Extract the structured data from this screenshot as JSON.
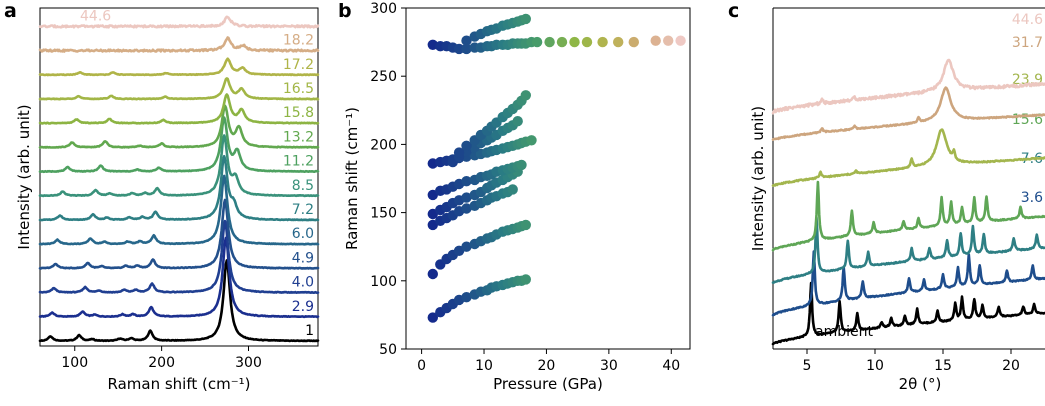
{
  "colors": {
    "black": "#000000",
    "navy": "#1b2f8f",
    "blue": "#23508c",
    "teal": "#2e7f84",
    "sea": "#3f9a76",
    "green": "#62a84f",
    "lime": "#8db443",
    "olive": "#b0b448",
    "tan": "#c8a86a",
    "sand": "#d5ad86",
    "pink": "#ecc7c0"
  },
  "panels": {
    "a": {
      "letter": "a"
    },
    "b": {
      "letter": "b"
    },
    "c": {
      "letter": "c"
    }
  },
  "chart_data": [
    {
      "panel": "a",
      "type": "line",
      "xlabel": "Raman shift (cm⁻¹)",
      "ylabel": "Intensity (arb. unit)",
      "xlim": [
        60,
        380
      ],
      "xticks": [
        100,
        200,
        300
      ],
      "yticks": [],
      "series": [
        {
          "name": "1",
          "color": "#000000",
          "peaks": [
            [
              72,
              0.15
            ],
            [
              105,
              0.18
            ],
            [
              120,
              0.05
            ],
            [
              152,
              0.07
            ],
            [
              165,
              0.08
            ],
            [
              187,
              0.32
            ],
            [
              275,
              2.6
            ]
          ]
        },
        {
          "name": "2.9",
          "color": "#1b2f8f",
          "peaks": [
            [
              74,
              0.13
            ],
            [
              109,
              0.16
            ],
            [
              123,
              0.06
            ],
            [
              155,
              0.07
            ],
            [
              167,
              0.07
            ],
            [
              188,
              0.3
            ],
            [
              274,
              2.55
            ]
          ]
        },
        {
          "name": "4.0",
          "color": "#203f91",
          "peaks": [
            [
              76,
              0.14
            ],
            [
              112,
              0.17
            ],
            [
              128,
              0.06
            ],
            [
              157,
              0.08
            ],
            [
              170,
              0.08
            ],
            [
              189,
              0.28
            ],
            [
              273,
              2.3
            ]
          ]
        },
        {
          "name": "4.9",
          "color": "#23508c",
          "peaks": [
            [
              78,
              0.14
            ],
            [
              115,
              0.17
            ],
            [
              131,
              0.06
            ],
            [
              159,
              0.08
            ],
            [
              172,
              0.08
            ],
            [
              190,
              0.27
            ],
            [
              273,
              2.2
            ]
          ]
        },
        {
          "name": "6.0",
          "color": "#27678b",
          "peaks": [
            [
              80,
              0.14
            ],
            [
              118,
              0.18
            ],
            [
              134,
              0.07
            ],
            [
              161,
              0.08
            ],
            [
              175,
              0.08
            ],
            [
              191,
              0.27
            ],
            [
              272,
              2.2
            ]
          ]
        },
        {
          "name": "7.2",
          "color": "#2e7f84",
          "peaks": [
            [
              83,
              0.14
            ],
            [
              121,
              0.18
            ],
            [
              137,
              0.07
            ],
            [
              163,
              0.08
            ],
            [
              178,
              0.09
            ],
            [
              193,
              0.26
            ],
            [
              272,
              2.0
            ],
            [
              283,
              0.4
            ]
          ]
        },
        {
          "name": "8.5",
          "color": "#3a927b",
          "peaks": [
            [
              86,
              0.13
            ],
            [
              124,
              0.18
            ],
            [
              140,
              0.07
            ],
            [
              166,
              0.08
            ],
            [
              181,
              0.08
            ],
            [
              195,
              0.24
            ],
            [
              272,
              1.9
            ],
            [
              285,
              0.5
            ]
          ]
        },
        {
          "name": "11.2",
          "color": "#4ea160",
          "peaks": [
            [
              92,
              0.14
            ],
            [
              130,
              0.19
            ],
            [
              172,
              0.06
            ],
            [
              197,
              0.12
            ],
            [
              272,
              1.7
            ],
            [
              287,
              0.6
            ]
          ]
        },
        {
          "name": "13.2",
          "color": "#62a84f",
          "peaks": [
            [
              97,
              0.16
            ],
            [
              135,
              0.2
            ],
            [
              175,
              0.05
            ],
            [
              200,
              0.12
            ],
            [
              273,
              1.3
            ],
            [
              289,
              0.6
            ]
          ]
        },
        {
          "name": "15.8",
          "color": "#8db443",
          "peaks": [
            [
              102,
              0.12
            ],
            [
              140,
              0.14
            ],
            [
              202,
              0.1
            ],
            [
              275,
              0.9
            ],
            [
              292,
              0.4
            ]
          ]
        },
        {
          "name": "16.5",
          "color": "#a2b646",
          "peaks": [
            [
              104,
              0.09
            ],
            [
              142,
              0.1
            ],
            [
              204,
              0.07
            ],
            [
              275,
              0.65
            ],
            [
              292,
              0.3
            ]
          ]
        },
        {
          "name": "17.2",
          "color": "#b0b448",
          "peaks": [
            [
              106,
              0.07
            ],
            [
              144,
              0.07
            ],
            [
              205,
              0.05
            ],
            [
              276,
              0.5
            ],
            [
              293,
              0.2
            ]
          ]
        },
        {
          "name": "18.2",
          "color": "#d5ad86",
          "peaks": [
            [
              276,
              0.4
            ],
            [
              294,
              0.15
            ]
          ]
        },
        {
          "name": "44.6",
          "color": "#ecc7c0",
          "peaks": [
            [
              276,
              0.3
            ]
          ]
        }
      ]
    },
    {
      "panel": "b",
      "type": "scatter",
      "xlabel": "Pressure (GPa)",
      "ylabel": "Raman shift (cm⁻¹)",
      "xlim": [
        -2.5,
        43
      ],
      "ylim": [
        50,
        300
      ],
      "xticks": [
        0,
        10,
        20,
        30,
        40
      ],
      "yticks": [
        50,
        100,
        150,
        200,
        250,
        300
      ],
      "series": [
        {
          "x": [
            1.8,
            3,
            4,
            5,
            6,
            7.2,
            8.5,
            9.5,
            10.5,
            11.2,
            12,
            13,
            13.8,
            14.6,
            15.4,
            16,
            16.7
          ],
          "y": [
            73,
            77,
            80,
            83,
            86,
            88,
            90,
            92,
            93,
            95,
            96,
            97,
            98,
            99,
            100,
            100,
            101
          ]
        },
        {
          "x": [
            1.8,
            3,
            4,
            5,
            6,
            7.2,
            8.5,
            9.5,
            10.5,
            11.2,
            12,
            13,
            13.8,
            14.6,
            15.4,
            16,
            16.7
          ],
          "y": [
            105,
            112,
            116,
            119,
            122,
            125,
            127,
            129,
            131,
            132,
            134,
            136,
            137,
            138,
            139,
            140,
            141
          ]
        },
        {
          "x": [
            1.8,
            3,
            4,
            5,
            6,
            7.2,
            8.5,
            9.5,
            10.5,
            11.2,
            12,
            13,
            13.8,
            14.6
          ],
          "y": [
            141,
            144,
            146,
            148,
            151,
            153,
            155,
            157,
            159,
            161,
            162,
            164,
            165,
            167
          ]
        },
        {
          "x": [
            1.8,
            3,
            4,
            5,
            6,
            7.2,
            8.5,
            9.5,
            10.5,
            11.2,
            12,
            13,
            13.8,
            14.6,
            15.4
          ],
          "y": [
            149,
            152,
            154,
            157,
            159,
            161,
            163,
            165,
            168,
            170,
            172,
            174,
            176,
            178,
            180
          ]
        },
        {
          "x": [
            1.8,
            3,
            4,
            5,
            6,
            7.2,
            8.5,
            9.5,
            10.5,
            11.2,
            12,
            13,
            13.8,
            14.6,
            15.4,
            16
          ],
          "y": [
            163,
            166,
            167,
            169,
            171,
            173,
            174,
            176,
            177,
            178,
            180,
            181,
            182,
            183,
            184,
            185
          ]
        },
        {
          "x": [
            1.8,
            3,
            4,
            5,
            6,
            7.2,
            8.5,
            9.5,
            10.5,
            11.2,
            12,
            13,
            13.8,
            14.6,
            15.4,
            16,
            16.7,
            17.6
          ],
          "y": [
            186,
            187,
            188,
            189,
            190,
            191,
            192,
            193,
            194,
            195,
            196,
            197,
            198,
            199,
            200,
            201,
            202,
            203
          ]
        },
        {
          "x": [
            5,
            6,
            7.2,
            8.5,
            9.5,
            10.5,
            11.2,
            12,
            13,
            13.8,
            14.6,
            15.4
          ],
          "y": [
            187,
            191,
            195,
            198,
            201,
            203,
            205,
            207,
            210,
            212,
            214,
            217
          ]
        },
        {
          "x": [
            6,
            7.2,
            8.5,
            9.5,
            10.5,
            11.2,
            12,
            13,
            13.8,
            14.6,
            15.4,
            16,
            16.7
          ],
          "y": [
            194,
            199,
            203,
            207,
            210,
            213,
            216,
            220,
            223,
            226,
            229,
            232,
            236
          ]
        },
        {
          "x": [
            1.8,
            3,
            4,
            5,
            6,
            7.2,
            8.5,
            9.5,
            10.5,
            11.2,
            12,
            13,
            13.8,
            14.6,
            15.4,
            16,
            16.7,
            17.6,
            18.5,
            20.5,
            22.5,
            24.5,
            26.5,
            29,
            31.5,
            34,
            37.5,
            39.5,
            41.5
          ],
          "y": [
            273,
            272,
            272,
            271,
            270,
            270,
            271,
            271,
            272,
            272,
            273,
            273,
            273,
            274,
            274,
            274,
            274,
            275,
            275,
            275,
            275,
            275,
            275,
            275,
            275,
            275,
            276,
            276,
            276
          ]
        },
        {
          "x": [
            7.2,
            8.5,
            9.5,
            10.5,
            11.2,
            12,
            13,
            13.8,
            14.6,
            15.4,
            16,
            16.7
          ],
          "y": [
            276,
            279,
            281,
            283,
            284,
            285,
            287,
            288,
            289,
            290,
            291,
            292
          ]
        }
      ]
    },
    {
      "panel": "c",
      "type": "line",
      "xlabel": "2θ (°)",
      "ylabel": "Intensity (arb. unit)",
      "xlim": [
        2.5,
        22.5
      ],
      "xticks": [
        5,
        10,
        15,
        20
      ],
      "yticks": [],
      "series": [
        {
          "name": "ambient",
          "color": "#000000",
          "base": [
            0,
            1.1
          ],
          "peaks": [
            [
              5.3,
              1.9
            ],
            [
              7.4,
              1.1
            ],
            [
              8.7,
              0.6
            ],
            [
              10.5,
              0.2
            ],
            [
              11.2,
              0.3
            ],
            [
              12.2,
              0.35
            ],
            [
              13.1,
              0.55
            ],
            [
              14.6,
              0.4
            ],
            [
              15.9,
              0.6
            ],
            [
              16.4,
              0.8
            ],
            [
              17.3,
              0.7
            ],
            [
              17.9,
              0.45
            ],
            [
              19.1,
              0.35
            ],
            [
              20.9,
              0.3
            ],
            [
              21.7,
              0.35
            ]
          ]
        },
        {
          "name": "3.6",
          "color": "#1e4d8c",
          "base": [
            0,
            1.3
          ],
          "peaks": [
            [
              5.5,
              1.9
            ],
            [
              7.7,
              1.2
            ],
            [
              9.1,
              0.6
            ],
            [
              12.5,
              0.5
            ],
            [
              13.6,
              0.4
            ],
            [
              15.0,
              0.5
            ],
            [
              16.1,
              0.7
            ],
            [
              16.9,
              1.1
            ],
            [
              17.7,
              0.7
            ],
            [
              19.7,
              0.4
            ],
            [
              21.6,
              0.5
            ]
          ]
        },
        {
          "name": "7.6",
          "color": "#2e7f84",
          "base": [
            0,
            1.25
          ],
          "peaks": [
            [
              5.7,
              2.0
            ],
            [
              8.0,
              1.0
            ],
            [
              9.5,
              0.5
            ],
            [
              12.7,
              0.45
            ],
            [
              14.0,
              0.4
            ],
            [
              15.3,
              0.6
            ],
            [
              16.3,
              0.8
            ],
            [
              17.2,
              1.0
            ],
            [
              18.0,
              0.7
            ],
            [
              20.2,
              0.45
            ],
            [
              21.9,
              0.5
            ]
          ]
        },
        {
          "name": "15.6",
          "color": "#5fa656",
          "base": [
            0,
            1.2
          ],
          "peaks": [
            [
              5.8,
              2.1
            ],
            [
              8.3,
              0.9
            ],
            [
              9.9,
              0.4
            ],
            [
              12.1,
              0.3
            ],
            [
              13.2,
              0.35
            ],
            [
              14.9,
              1.0
            ],
            [
              15.6,
              0.8
            ],
            [
              16.4,
              0.6
            ],
            [
              17.3,
              0.9
            ],
            [
              18.2,
              0.9
            ],
            [
              20.7,
              0.4
            ]
          ]
        },
        {
          "name": "23.9",
          "color": "#a3b64e",
          "base": [
            0,
            1.0
          ],
          "peaks": [
            [
              6.0,
              0.2
            ],
            [
              8.6,
              0.1
            ],
            [
              12.7,
              0.3
            ],
            [
              14.9,
              1.3
            ],
            [
              15.8,
              0.3
            ]
          ]
        },
        {
          "name": "31.7",
          "color": "#cda57e",
          "base": [
            0,
            0.9
          ],
          "peaks": [
            [
              6.1,
              0.15
            ],
            [
              8.5,
              0.1
            ],
            [
              13.2,
              0.2
            ],
            [
              15.2,
              1.2
            ]
          ]
        },
        {
          "name": "44.6",
          "color": "#ecc7c0",
          "base": [
            0,
            1.0
          ],
          "peaks": [
            [
              6.1,
              0.15
            ],
            [
              8.5,
              0.1
            ],
            [
              15.4,
              1.1
            ]
          ]
        }
      ]
    }
  ]
}
